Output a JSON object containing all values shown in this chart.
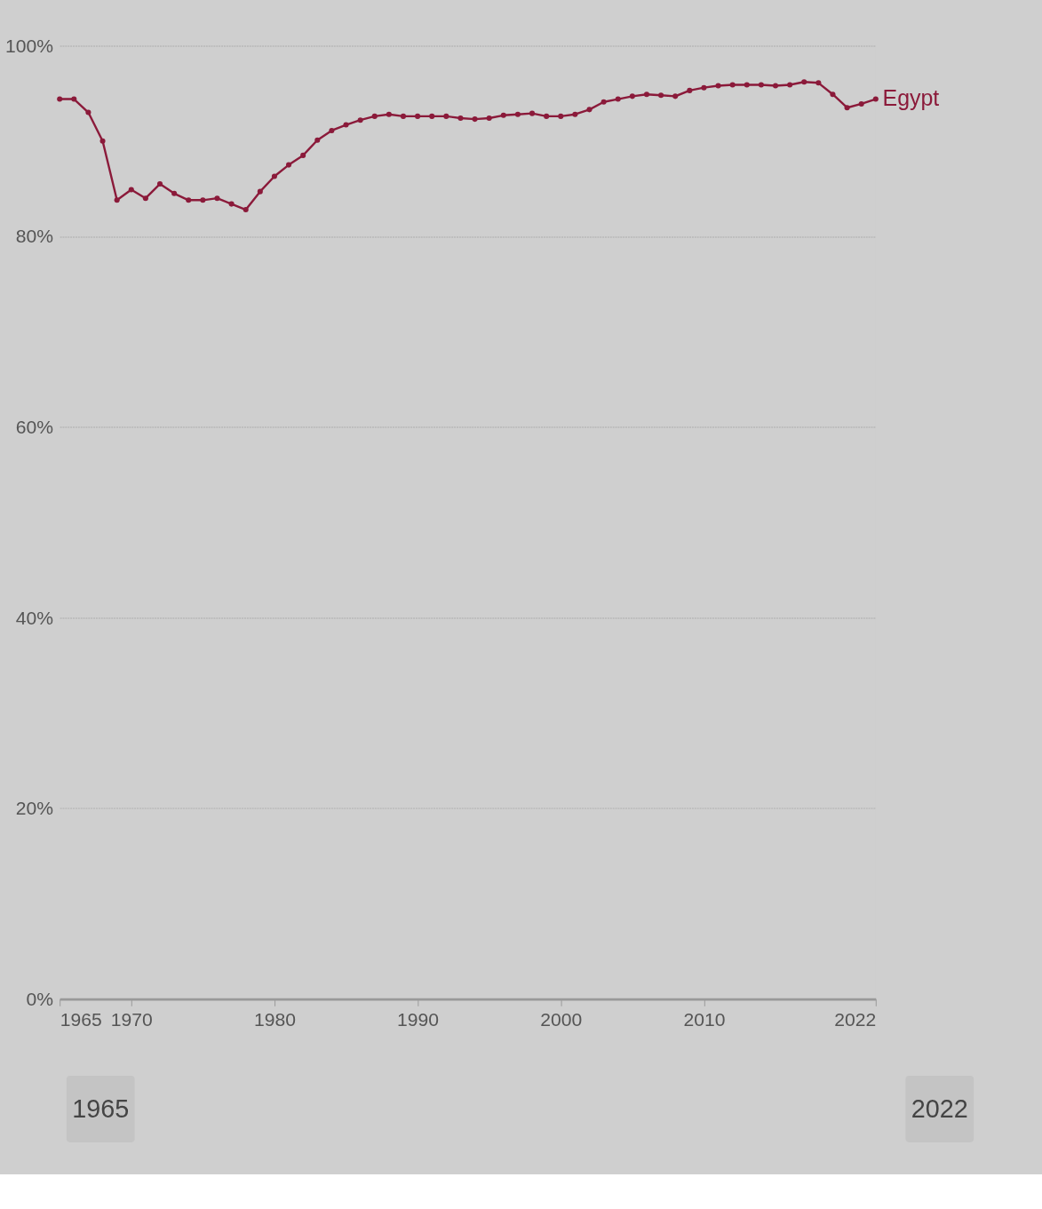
{
  "chart_data": {
    "type": "line",
    "x": [
      1965,
      1966,
      1967,
      1968,
      1969,
      1970,
      1971,
      1972,
      1973,
      1974,
      1975,
      1976,
      1977,
      1978,
      1979,
      1980,
      1981,
      1982,
      1983,
      1984,
      1985,
      1986,
      1987,
      1988,
      1989,
      1990,
      1991,
      1992,
      1993,
      1994,
      1995,
      1996,
      1997,
      1998,
      1999,
      2000,
      2001,
      2002,
      2003,
      2004,
      2005,
      2006,
      2007,
      2008,
      2009,
      2010,
      2011,
      2012,
      2013,
      2014,
      2015,
      2016,
      2017,
      2018,
      2019,
      2020,
      2021,
      2022
    ],
    "series": [
      {
        "name": "Egypt",
        "color": "#8b1a3a",
        "values": [
          94.4,
          94.4,
          93.0,
          90.0,
          83.8,
          84.9,
          84.0,
          85.5,
          84.5,
          83.8,
          83.8,
          84.0,
          83.4,
          82.8,
          84.7,
          86.3,
          87.5,
          88.5,
          90.1,
          91.1,
          91.7,
          92.2,
          92.6,
          92.8,
          92.6,
          92.6,
          92.6,
          92.6,
          92.4,
          92.3,
          92.4,
          92.7,
          92.8,
          92.9,
          92.6,
          92.6,
          92.8,
          93.3,
          94.1,
          94.4,
          94.7,
          94.9,
          94.8,
          94.7,
          95.3,
          95.6,
          95.8,
          95.9,
          95.9,
          95.9,
          95.8,
          95.9,
          96.2,
          96.1,
          94.9,
          93.5,
          93.9,
          94.4
        ]
      }
    ],
    "xlim": [
      1965,
      2022
    ],
    "xticks": [
      1965,
      1970,
      1980,
      1990,
      2000,
      2010,
      2022
    ],
    "ylim": [
      0,
      100
    ],
    "yticks": [
      {
        "value": 0,
        "label": "0%"
      },
      {
        "value": 20,
        "label": "20%"
      },
      {
        "value": 40,
        "label": "40%"
      },
      {
        "value": 60,
        "label": "60%"
      },
      {
        "value": 80,
        "label": "80%"
      },
      {
        "value": 100,
        "label": "100%"
      }
    ],
    "grid": "y",
    "legend": false,
    "marker": "circle",
    "line_style": "solid",
    "annotations": [
      "1965",
      "2022"
    ]
  }
}
